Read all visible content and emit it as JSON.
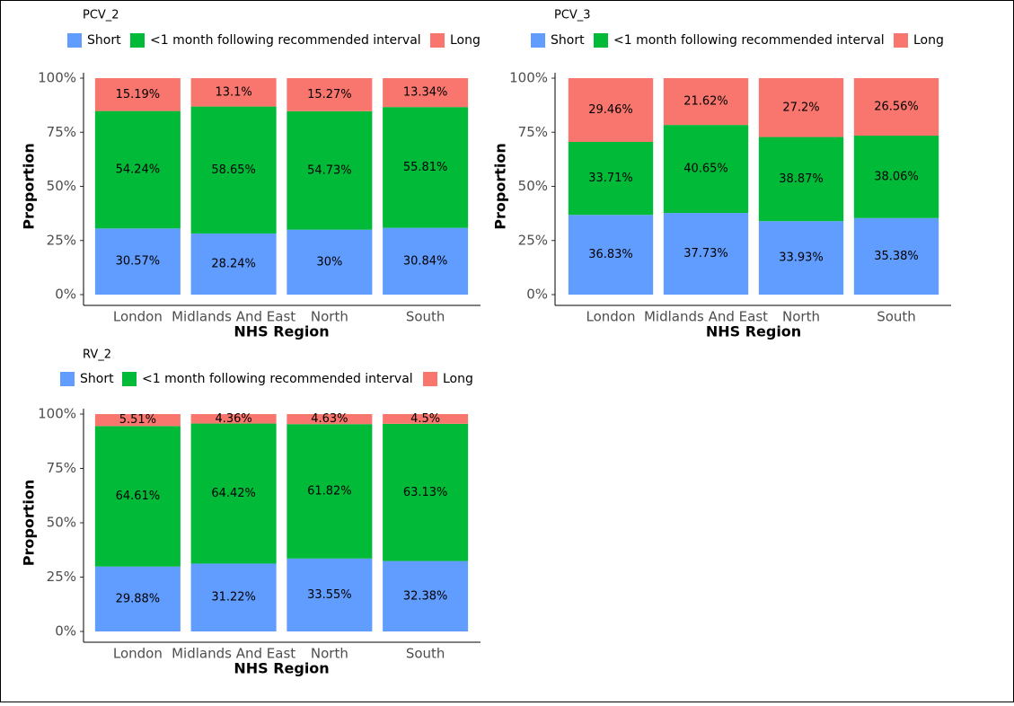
{
  "chart_data": [
    {
      "type": "bar",
      "stacked": true,
      "title": "PCV_2",
      "x_label": "NHS Region",
      "y_label": "Proportion",
      "categories": [
        "London",
        "Midlands And East",
        "North",
        "South"
      ],
      "series": [
        {
          "name": "Short",
          "color": "#619cff",
          "values": [
            30.57,
            28.24,
            30,
            30.84
          ],
          "value_labels": [
            "30.57%",
            "28.24%",
            "30%",
            "30.84%"
          ]
        },
        {
          "name": "<1 month following recommended interval",
          "color": "#00ba38",
          "values": [
            54.24,
            58.65,
            54.73,
            55.81
          ],
          "value_labels": [
            "54.24%",
            "58.65%",
            "54.73%",
            "55.81%"
          ]
        },
        {
          "name": "Long",
          "color": "#f8766d",
          "values": [
            15.19,
            13.1,
            15.27,
            13.34
          ],
          "value_labels": [
            "15.19%",
            "13.1%",
            "15.27%",
            "13.34%"
          ]
        }
      ],
      "ylim": [
        0,
        100
      ],
      "yticks": [
        {
          "value": 0,
          "label": "0%"
        },
        {
          "value": 25,
          "label": "25%"
        },
        {
          "value": 50,
          "label": "50%"
        },
        {
          "value": 75,
          "label": "75%"
        },
        {
          "value": 100,
          "label": "100%"
        }
      ]
    },
    {
      "type": "bar",
      "stacked": true,
      "title": "PCV_3",
      "x_label": "NHS Region",
      "y_label": "Proportion",
      "categories": [
        "London",
        "Midlands And East",
        "North",
        "South"
      ],
      "series": [
        {
          "name": "Short",
          "color": "#619cff",
          "values": [
            36.83,
            37.73,
            33.93,
            35.38
          ],
          "value_labels": [
            "36.83%",
            "37.73%",
            "33.93%",
            "35.38%"
          ]
        },
        {
          "name": "<1 month following recommended interval",
          "color": "#00ba38",
          "values": [
            33.71,
            40.65,
            38.87,
            38.06
          ],
          "value_labels": [
            "33.71%",
            "40.65%",
            "38.87%",
            "38.06%"
          ]
        },
        {
          "name": "Long",
          "color": "#f8766d",
          "values": [
            29.46,
            21.62,
            27.2,
            26.56
          ],
          "value_labels": [
            "29.46%",
            "21.62%",
            "27.2%",
            "26.56%"
          ]
        }
      ],
      "ylim": [
        0,
        100
      ],
      "yticks": [
        {
          "value": 0,
          "label": "0%"
        },
        {
          "value": 25,
          "label": "25%"
        },
        {
          "value": 50,
          "label": "50%"
        },
        {
          "value": 75,
          "label": "75%"
        },
        {
          "value": 100,
          "label": "100%"
        }
      ]
    },
    {
      "type": "bar",
      "stacked": true,
      "title": "RV_2",
      "x_label": "NHS Region",
      "y_label": "Proportion",
      "categories": [
        "London",
        "Midlands And East",
        "North",
        "South"
      ],
      "series": [
        {
          "name": "Short",
          "color": "#619cff",
          "values": [
            29.88,
            31.22,
            33.55,
            32.38
          ],
          "value_labels": [
            "29.88%",
            "31.22%",
            "33.55%",
            "32.38%"
          ]
        },
        {
          "name": "<1 month following recommended interval",
          "color": "#00ba38",
          "values": [
            64.61,
            64.42,
            61.82,
            63.13
          ],
          "value_labels": [
            "64.61%",
            "64.42%",
            "61.82%",
            "63.13%"
          ]
        },
        {
          "name": "Long",
          "color": "#f8766d",
          "values": [
            5.51,
            4.36,
            4.63,
            4.5
          ],
          "value_labels": [
            "5.51%",
            "4.36%",
            "4.63%",
            "4.5%"
          ]
        }
      ],
      "ylim": [
        0,
        100
      ],
      "yticks": [
        {
          "value": 0,
          "label": "0%"
        },
        {
          "value": 25,
          "label": "25%"
        },
        {
          "value": 50,
          "label": "50%"
        },
        {
          "value": 75,
          "label": "75%"
        },
        {
          "value": 100,
          "label": "100%"
        }
      ]
    }
  ]
}
